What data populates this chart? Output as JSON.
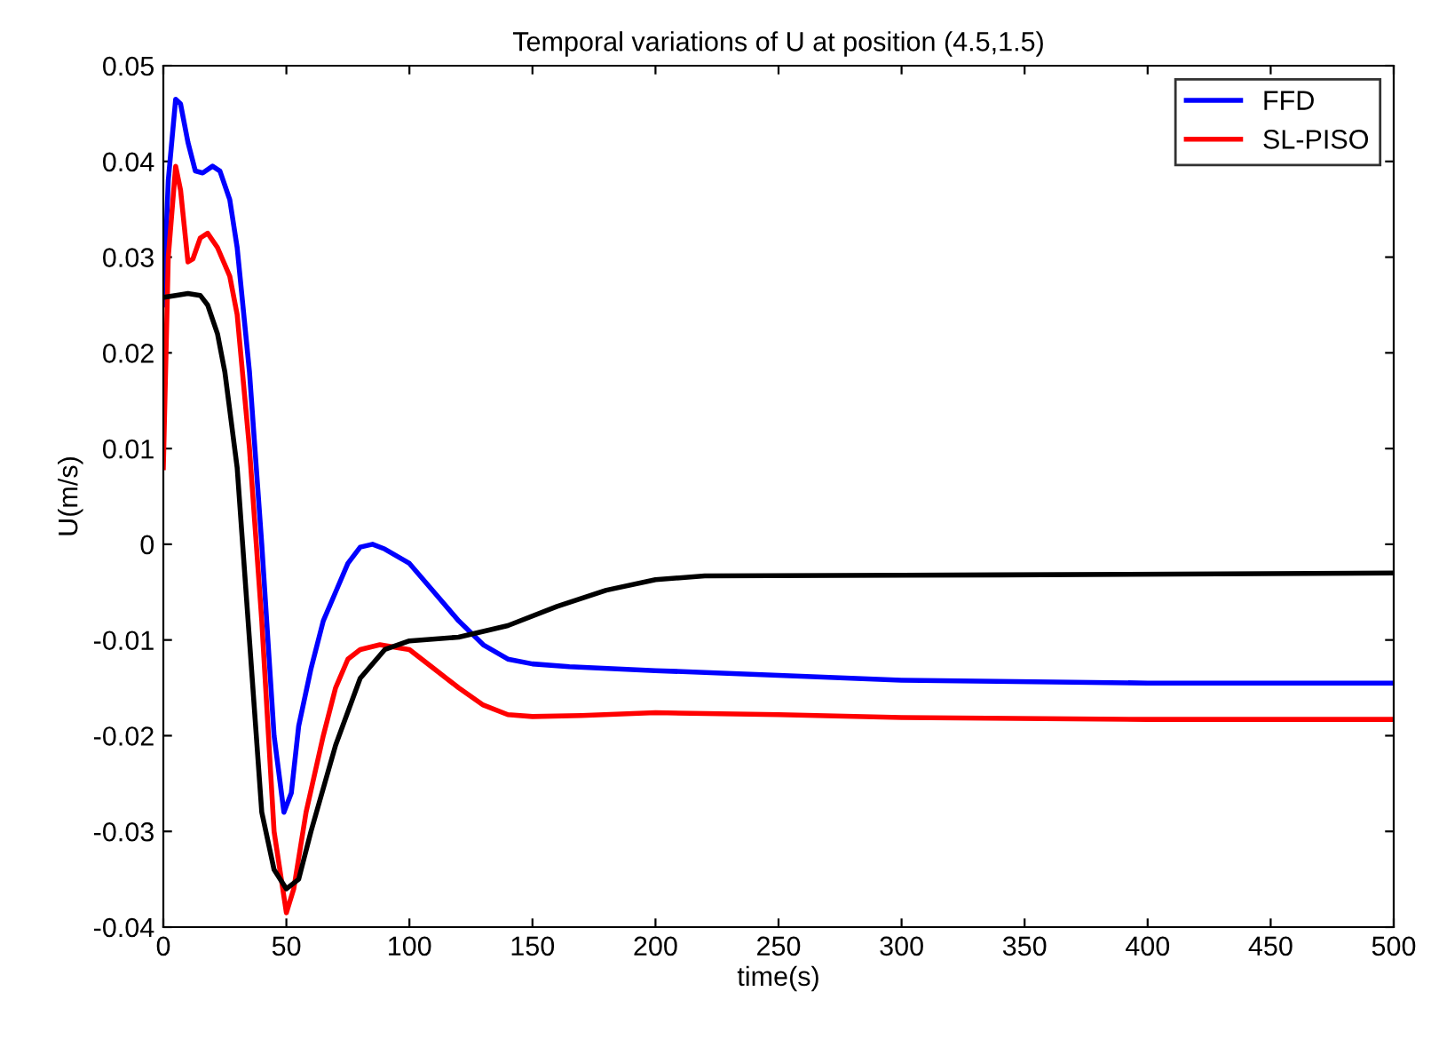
{
  "chart_data": {
    "type": "line",
    "title": "Temporal variations of U at position (4.5,1.5)",
    "xlabel": "time(s)",
    "ylabel": "U(m/s)",
    "xlim": [
      0,
      500
    ],
    "xticks": [
      0,
      50,
      100,
      150,
      200,
      250,
      300,
      350,
      400,
      450,
      500
    ],
    "ylim": [
      -0.04,
      0.05
    ],
    "yticks": [
      -0.04,
      -0.03,
      -0.02,
      -0.01,
      0,
      0.01,
      0.02,
      0.03,
      0.04,
      0.05
    ],
    "grid": false,
    "legend": "top right",
    "line_style": "solid",
    "series": [
      {
        "name": "FFD",
        "color": "#0000ff",
        "x": [
          0,
          2,
          5,
          7,
          10,
          13,
          16,
          20,
          23,
          27,
          30,
          35,
          40,
          45,
          49,
          52,
          55,
          60,
          65,
          70,
          75,
          80,
          85,
          90,
          100,
          110,
          120,
          130,
          140,
          150,
          165,
          200,
          250,
          300,
          400,
          500
        ],
        "values": [
          0.025,
          0.038,
          0.0465,
          0.046,
          0.042,
          0.039,
          0.0388,
          0.0395,
          0.039,
          0.036,
          0.031,
          0.018,
          0.0,
          -0.02,
          -0.028,
          -0.026,
          -0.019,
          -0.013,
          -0.008,
          -0.005,
          -0.002,
          -0.0003,
          0.0,
          -0.0005,
          -0.002,
          -0.005,
          -0.008,
          -0.0105,
          -0.012,
          -0.0125,
          -0.0128,
          -0.0132,
          -0.0137,
          -0.0142,
          -0.0145,
          -0.0145
        ]
      },
      {
        "name": "SL-PISO",
        "color": "#ff0000",
        "x": [
          0,
          2,
          5,
          7,
          10,
          12,
          15,
          18,
          22,
          27,
          30,
          35,
          40,
          45,
          50,
          53,
          58,
          65,
          70,
          75,
          80,
          88,
          95,
          100,
          110,
          120,
          130,
          140,
          150,
          170,
          200,
          250,
          300,
          400,
          500
        ],
        "values": [
          0.008,
          0.03,
          0.0395,
          0.037,
          0.0295,
          0.0298,
          0.032,
          0.0325,
          0.031,
          0.028,
          0.024,
          0.01,
          -0.008,
          -0.03,
          -0.0385,
          -0.036,
          -0.028,
          -0.02,
          -0.015,
          -0.012,
          -0.011,
          -0.0105,
          -0.0108,
          -0.011,
          -0.013,
          -0.015,
          -0.0168,
          -0.0178,
          -0.018,
          -0.0179,
          -0.0176,
          -0.0178,
          -0.0181,
          -0.0183,
          -0.0183
        ]
      },
      {
        "color": "#000000",
        "x": [
          0,
          5,
          10,
          15,
          18,
          22,
          25,
          30,
          35,
          40,
          45,
          50,
          55,
          60,
          70,
          80,
          90,
          100,
          120,
          140,
          160,
          180,
          200,
          220,
          340,
          500
        ],
        "values": [
          0.0258,
          0.026,
          0.0262,
          0.026,
          0.025,
          0.022,
          0.018,
          0.008,
          -0.01,
          -0.028,
          -0.034,
          -0.036,
          -0.035,
          -0.03,
          -0.021,
          -0.014,
          -0.011,
          -0.0101,
          -0.0097,
          -0.0085,
          -0.0065,
          -0.0048,
          -0.0037,
          -0.0033,
          -0.0032,
          -0.003
        ]
      }
    ]
  }
}
